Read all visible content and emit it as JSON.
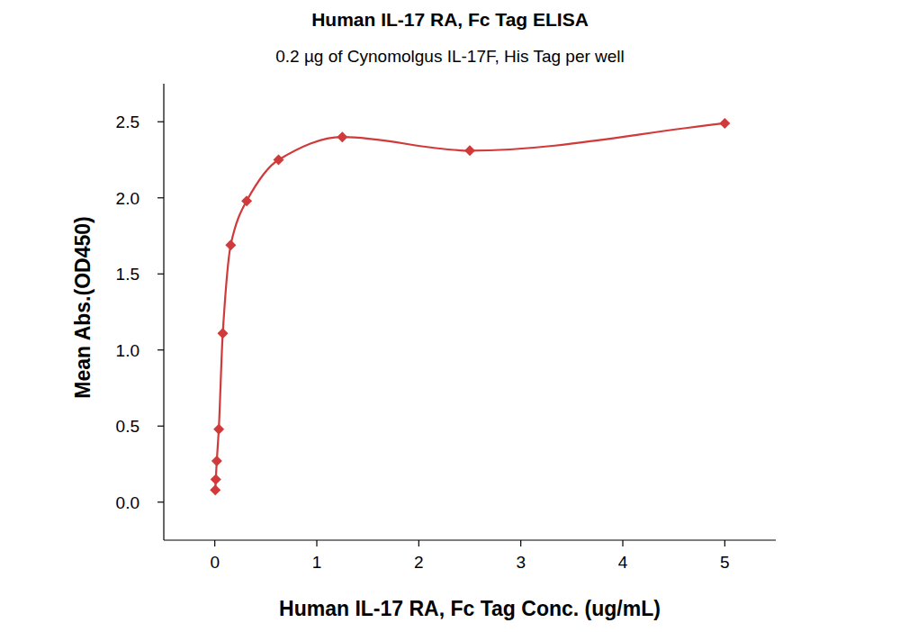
{
  "chart_data": {
    "type": "scatter",
    "title": "Human IL-17 RA, Fc Tag ELISA",
    "subtitle": "0.2 µg of Cynomolgus IL-17F, His Tag per well",
    "x_label": "Human IL-17 RA, Fc Tag Conc. (ug/mL)",
    "y_label": "Mean Abs.(OD450)",
    "x": [
      0.00488,
      0.00977,
      0.0195,
      0.0391,
      0.0781,
      0.156,
      0.3125,
      0.625,
      1.25,
      2.5,
      5
    ],
    "series": [
      {
        "name": "Human IL-17 RA, Fc Tag",
        "color": "#d03a3a",
        "type": "line",
        "marker": "diamond",
        "line_style": "smooth",
        "values": [
          0.08,
          0.15,
          0.27,
          0.48,
          1.11,
          1.69,
          1.98,
          2.25,
          2.4,
          2.31,
          2.49
        ]
      }
    ],
    "xlim": [
      -0.5,
      5.5
    ],
    "xticks": [
      0,
      1,
      2,
      3,
      4,
      5
    ],
    "ylim": [
      -0.25,
      2.75
    ],
    "yticks": [
      {
        "value": 0,
        "label": "0.0"
      },
      {
        "value": 0.5,
        "label": "0.5"
      },
      {
        "value": 1,
        "label": "1.0"
      },
      {
        "value": 1.5,
        "label": "1.5"
      },
      {
        "value": 2,
        "label": "2.0"
      },
      {
        "value": 2.5,
        "label": "2.5"
      }
    ],
    "grid": false
  }
}
